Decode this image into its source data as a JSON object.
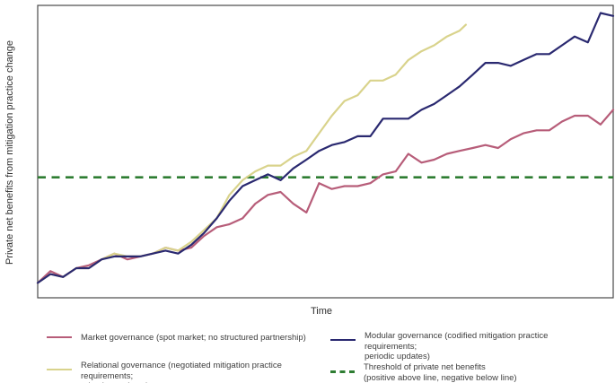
{
  "chart_data": {
    "type": "line",
    "title": "",
    "xlabel": "Time",
    "ylabel": "Private net benefits from mitigation practice change",
    "xlim": [
      0,
      100
    ],
    "ylim": [
      0,
      100
    ],
    "grid": false,
    "axis_ticks": "none (schematic axes, unlabeled)",
    "legend_position": "below plot, two columns",
    "frame_color": "#4a4a4a",
    "threshold": {
      "label": "Threshold of private net benefits\n(positive above line, negative below line)",
      "value": 42,
      "color": "#2e7d32",
      "line_style": "dashed"
    },
    "series": [
      {
        "name": "Market governance (spot market; no structured partnership)",
        "color": "#b75d79",
        "line_style": "solid",
        "x": [
          0,
          2.2,
          4.4,
          6.7,
          8.9,
          11.1,
          13.3,
          15.6,
          17.8,
          20,
          22.2,
          24.4,
          26.7,
          28.9,
          31.1,
          33.3,
          35.6,
          37.8,
          40,
          42.2,
          44.4,
          46.7,
          48.9,
          51.1,
          53.3,
          55.6,
          57.8,
          60,
          62.2,
          64.4,
          66.7,
          68.9,
          71.1,
          73.3,
          75.6,
          77.8,
          80,
          82.2,
          84.4,
          86.7,
          88.9,
          91.1,
          93.3,
          95.6,
          97.8,
          100
        ],
        "values": [
          6,
          10,
          8,
          11,
          12,
          14,
          16,
          14,
          15,
          16,
          18,
          17,
          18,
          22,
          25,
          26,
          28,
          33,
          36,
          37,
          33,
          30,
          40,
          38,
          39,
          39,
          40,
          43,
          44,
          50,
          47,
          48,
          50,
          51,
          52,
          53,
          52,
          55,
          57,
          58,
          58,
          61,
          63,
          63,
          60,
          65
        ]
      },
      {
        "name": "Relational governance (negotiated mitigation practice requirements;\n adaptive updates)",
        "color": "#d9d38c",
        "line_style": "solid",
        "x": [
          0,
          2.2,
          4.4,
          6.7,
          8.9,
          11.1,
          13.3,
          15.6,
          17.8,
          20,
          22.2,
          24.4,
          26.7,
          28.9,
          31.1,
          33.3,
          35.6,
          37.8,
          40,
          42.2,
          44.4,
          46.7,
          48.9,
          51.1,
          53.3,
          55.6,
          57.8,
          60,
          62.2,
          64.4,
          66.7,
          68.9,
          71.1,
          73.3,
          74.4
        ],
        "values": [
          6,
          9,
          8,
          11,
          11,
          14,
          16,
          15,
          15,
          16,
          18,
          17,
          20,
          24,
          28,
          36,
          41,
          44,
          46,
          46,
          49,
          51,
          57,
          63,
          68,
          70,
          75,
          75,
          77,
          82,
          85,
          87,
          90,
          92,
          94
        ]
      },
      {
        "name": "Modular governance (codified mitigation practice requirements;\n periodic updates)",
        "color": "#2a2970",
        "line_style": "solid",
        "x": [
          0,
          2.2,
          4.4,
          6.7,
          8.9,
          11.1,
          13.3,
          15.6,
          17.8,
          20,
          22.2,
          24.4,
          26.7,
          28.9,
          31.1,
          33.3,
          35.6,
          37.8,
          40,
          42.2,
          44.4,
          46.7,
          48.9,
          51.1,
          53.3,
          55.6,
          57.8,
          60,
          62.2,
          64.4,
          66.7,
          68.9,
          71.1,
          73.3,
          75.6,
          77.8,
          80,
          82.2,
          84.4,
          86.7,
          88.9,
          91.1,
          93.3,
          95.6,
          97.8,
          100
        ],
        "values": [
          6,
          9,
          8,
          11,
          11,
          14,
          15,
          15,
          15,
          16,
          17,
          16,
          19,
          23,
          28,
          34,
          39,
          41,
          43,
          41,
          45,
          48,
          51,
          53,
          54,
          56,
          56,
          62,
          62,
          62,
          65,
          67,
          70,
          73,
          77,
          81,
          81,
          80,
          82,
          84,
          84,
          87,
          90,
          88,
          98,
          97
        ]
      }
    ]
  },
  "legend": {
    "items": [
      {
        "label": "Market governance (spot market; no structured partnership)",
        "marker": "solid",
        "series": 0
      },
      {
        "label": "Relational governance (negotiated mitigation practice requirements;\n adaptive updates)",
        "marker": "solid",
        "series": 1
      },
      {
        "label": "Modular governance (codified mitigation practice requirements;\n periodic updates)",
        "marker": "solid",
        "series": 2
      },
      {
        "label": "Threshold of private net benefits\n(positive above line, negative below line)",
        "marker": "dashed",
        "color": "#2e7d32"
      }
    ]
  }
}
